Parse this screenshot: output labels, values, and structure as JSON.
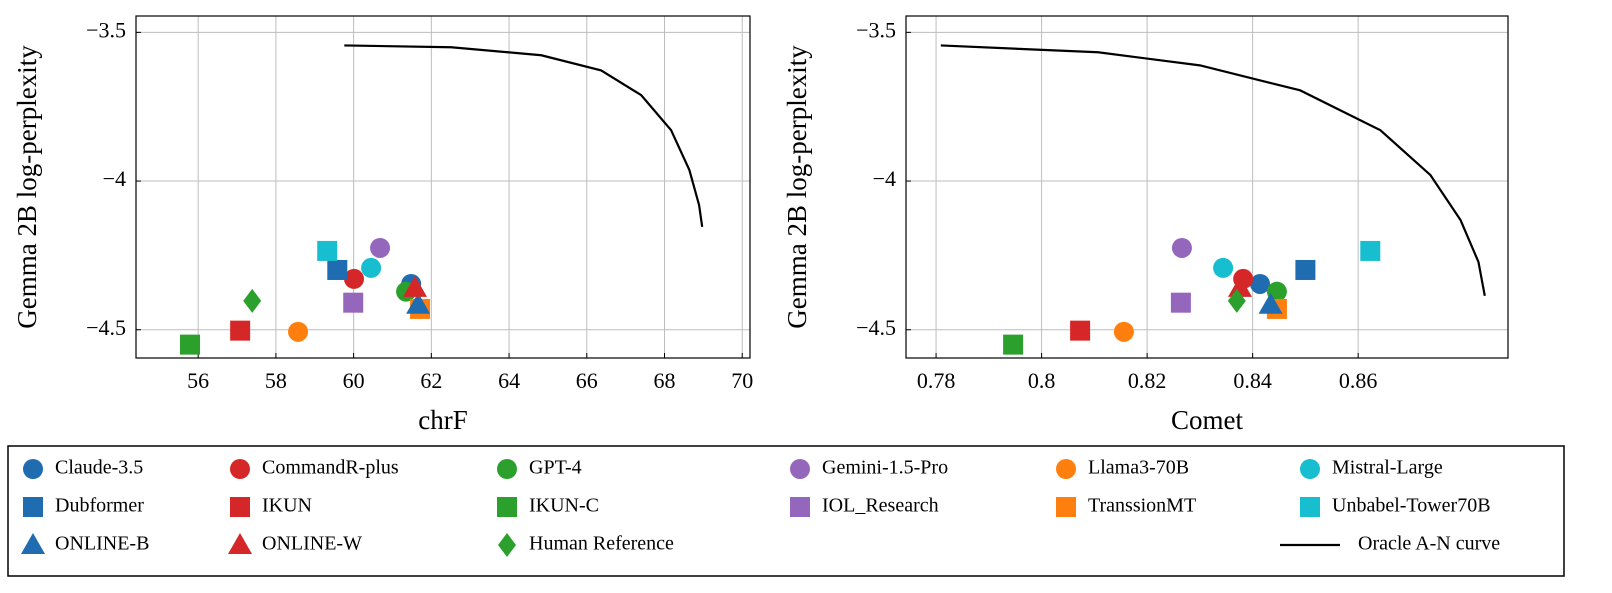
{
  "chart_data": [
    {
      "type": "scatter",
      "xlabel": "chrF",
      "ylabel": "Gemma 2B log-perplexity",
      "xlim": [
        54.4,
        70.2
      ],
      "ylim": [
        -4.595,
        -3.445
      ],
      "xticks": [
        56,
        58,
        60,
        62,
        64,
        66,
        68,
        70
      ],
      "yticks": [
        {
          "value": -3.5,
          "label": "−3.5"
        },
        {
          "value": -4,
          "label": "−4"
        },
        {
          "value": -4.5,
          "label": "−4.5"
        }
      ],
      "grid": true,
      "series": [
        {
          "name": "Claude-3.5",
          "color": "#1f6cb0",
          "marker": "circle",
          "x": [
            61.48
          ],
          "values": [
            -4.346
          ]
        },
        {
          "name": "CommandR-plus",
          "color": "#d62728",
          "marker": "circle",
          "x": [
            60.01
          ],
          "values": [
            -4.329
          ]
        },
        {
          "name": "GPT-4",
          "color": "#2ca02c",
          "marker": "circle",
          "x": [
            61.35
          ],
          "values": [
            -4.372
          ]
        },
        {
          "name": "Gemini-1.5-Pro",
          "color": "#9467bd",
          "marker": "circle",
          "x": [
            60.68
          ],
          "values": [
            -4.225
          ]
        },
        {
          "name": "Llama3-70B",
          "color": "#ff7f0e",
          "marker": "circle",
          "x": [
            58.57
          ],
          "values": [
            -4.507
          ]
        },
        {
          "name": "Mistral-Large",
          "color": "#17becf",
          "marker": "circle",
          "x": [
            60.45
          ],
          "values": [
            -4.292
          ]
        },
        {
          "name": "Dubformer",
          "color": "#1f6cb0",
          "marker": "square",
          "x": [
            59.58
          ],
          "values": [
            -4.299
          ]
        },
        {
          "name": "IKUN",
          "color": "#d62728",
          "marker": "square",
          "x": [
            57.08
          ],
          "values": [
            -4.503
          ]
        },
        {
          "name": "IKUN-C",
          "color": "#2ca02c",
          "marker": "square",
          "x": [
            55.79
          ],
          "values": [
            -4.55
          ]
        },
        {
          "name": "IOL_Research",
          "color": "#9467bd",
          "marker": "square",
          "x": [
            59.99
          ],
          "values": [
            -4.409
          ]
        },
        {
          "name": "TranssionMT",
          "color": "#ff7f0e",
          "marker": "square",
          "x": [
            61.71
          ],
          "values": [
            -4.43
          ]
        },
        {
          "name": "Unbabel-Tower70B",
          "color": "#17becf",
          "marker": "square",
          "x": [
            59.32
          ],
          "values": [
            -4.235
          ]
        },
        {
          "name": "ONLINE-B",
          "color": "#1f6cb0",
          "marker": "triangle",
          "x": [
            61.66
          ],
          "values": [
            -4.416
          ]
        },
        {
          "name": "ONLINE-W",
          "color": "#d62728",
          "marker": "triangle",
          "x": [
            61.58
          ],
          "values": [
            -4.359
          ]
        },
        {
          "name": "Human Reference",
          "color": "#2ca02c",
          "marker": "diamond",
          "x": [
            57.39
          ],
          "values": [
            -4.403
          ]
        },
        {
          "name": "Oracle A-N curve",
          "color": "#000000",
          "label_color": "#1a1a8c",
          "marker": "line",
          "x": [
            59.76,
            62.51,
            64.83,
            66.37,
            67.4,
            68.17,
            68.64,
            68.89,
            68.97
          ],
          "values": [
            -3.544,
            -3.55,
            -3.577,
            -3.628,
            -3.711,
            -3.829,
            -3.963,
            -4.081,
            -4.154
          ]
        }
      ]
    },
    {
      "type": "scatter",
      "xlabel": "Comet",
      "ylabel": "Gemma 2B log-perplexity",
      "xlim": [
        0.7743,
        0.8884
      ],
      "ylim": [
        -4.595,
        -3.445
      ],
      "xticks": [
        0.78,
        0.8,
        0.82,
        0.84,
        0.86
      ],
      "yticks": [
        {
          "value": -3.5,
          "label": "−3.5"
        },
        {
          "value": -4,
          "label": "−4"
        },
        {
          "value": -4.5,
          "label": "−4.5"
        }
      ],
      "grid": true,
      "series": [
        {
          "name": "Claude-3.5",
          "color": "#1f6cb0",
          "marker": "circle",
          "x": [
            0.8414
          ],
          "values": [
            -4.346
          ]
        },
        {
          "name": "CommandR-plus",
          "color": "#d62728",
          "marker": "circle",
          "x": [
            0.8382
          ],
          "values": [
            -4.329
          ]
        },
        {
          "name": "GPT-4",
          "color": "#2ca02c",
          "marker": "circle",
          "x": [
            0.8446
          ],
          "values": [
            -4.372
          ]
        },
        {
          "name": "Gemini-1.5-Pro",
          "color": "#9467bd",
          "marker": "circle",
          "x": [
            0.8266
          ],
          "values": [
            -4.225
          ]
        },
        {
          "name": "Llama3-70B",
          "color": "#ff7f0e",
          "marker": "circle",
          "x": [
            0.8156
          ],
          "values": [
            -4.507
          ]
        },
        {
          "name": "Mistral-Large",
          "color": "#17becf",
          "marker": "circle",
          "x": [
            0.8344
          ],
          "values": [
            -4.292
          ]
        },
        {
          "name": "Dubformer",
          "color": "#1f6cb0",
          "marker": "square",
          "x": [
            0.85
          ],
          "values": [
            -4.299
          ]
        },
        {
          "name": "IKUN",
          "color": "#d62728",
          "marker": "square",
          "x": [
            0.8073
          ],
          "values": [
            -4.503
          ]
        },
        {
          "name": "IKUN-C",
          "color": "#2ca02c",
          "marker": "square",
          "x": [
            0.7946
          ],
          "values": [
            -4.55
          ]
        },
        {
          "name": "IOL_Research",
          "color": "#9467bd",
          "marker": "square",
          "x": [
            0.8264
          ],
          "values": [
            -4.409
          ]
        },
        {
          "name": "TranssionMT",
          "color": "#ff7f0e",
          "marker": "square",
          "x": [
            0.8446
          ],
          "values": [
            -4.43
          ]
        },
        {
          "name": "Unbabel-Tower70B",
          "color": "#17becf",
          "marker": "square",
          "x": [
            0.8623
          ],
          "values": [
            -4.235
          ]
        },
        {
          "name": "ONLINE-B",
          "color": "#1f6cb0",
          "marker": "triangle",
          "x": [
            0.8434
          ],
          "values": [
            -4.416
          ]
        },
        {
          "name": "ONLINE-W",
          "color": "#d62728",
          "marker": "triangle",
          "x": [
            0.8376
          ],
          "values": [
            -4.359
          ]
        },
        {
          "name": "Human Reference",
          "color": "#2ca02c",
          "marker": "diamond",
          "x": [
            0.837
          ],
          "values": [
            -4.403
          ]
        },
        {
          "name": "Oracle A-N curve",
          "color": "#000000",
          "label_color": "#1a1a8c",
          "marker": "line",
          "x": [
            0.7809,
            0.8107,
            0.83,
            0.849,
            0.8642,
            0.8737,
            0.8794,
            0.8828,
            0.884
          ],
          "values": [
            -3.544,
            -3.567,
            -3.611,
            -3.695,
            -3.829,
            -3.98,
            -4.131,
            -4.272,
            -4.386
          ]
        }
      ]
    }
  ]
}
